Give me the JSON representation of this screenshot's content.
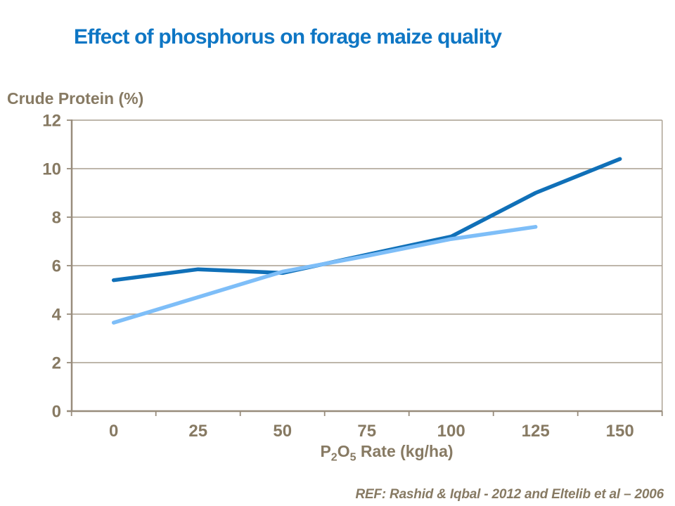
{
  "slide": {
    "ref_note": "REF: Rashid & Iqbal - 2012 and Eltelib et al – 2006"
  },
  "labels": {
    "xlabel_parts": {
      "base1": "P",
      "sub1": "2",
      "base2": "O",
      "sub2": "5",
      "rest": " Rate (kg/ha)"
    }
  },
  "colors": {
    "title_text": "#0E76C4",
    "axis_text": "#877A63",
    "gridline": "#A89D8E",
    "axis_line": "#988C7C",
    "series_dark": "#1070B8",
    "series_light": "#7EBEF8"
  },
  "chart_data": {
    "type": "line",
    "title": "Effect of phosphorus on forage maize quality",
    "xlabel": "P2O5 Rate (kg/ha)",
    "ylabel": "Crude Protein (%)",
    "x": [
      0,
      25,
      50,
      75,
      100,
      125,
      150
    ],
    "xticks": [
      "0",
      "25",
      "50",
      "75",
      "100",
      "125",
      "150"
    ],
    "yticks": [
      0,
      2,
      4,
      6,
      8,
      10,
      12
    ],
    "ylim": [
      0,
      12
    ],
    "grid": true,
    "legend": "none",
    "series": [
      {
        "name": "series-1-dark-blue",
        "color": "#1070B8",
        "x": [
          0,
          25,
          50,
          75,
          100,
          125,
          150
        ],
        "values": [
          5.4,
          5.85,
          5.7,
          6.45,
          7.2,
          9.0,
          10.4
        ]
      },
      {
        "name": "series-2-light-blue",
        "color": "#7EBEF8",
        "x": [
          0,
          25,
          50,
          75,
          100,
          125
        ],
        "values": [
          3.65,
          4.7,
          5.75,
          6.4,
          7.1,
          7.6
        ]
      }
    ]
  }
}
